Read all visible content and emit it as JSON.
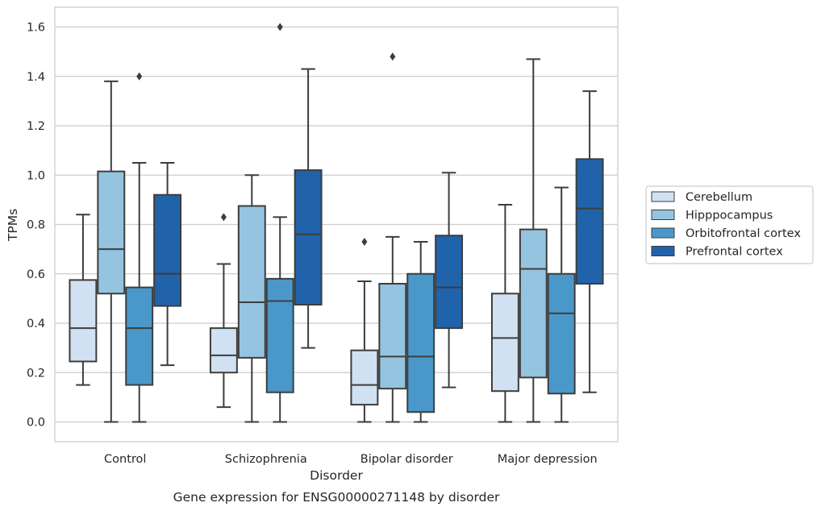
{
  "chart_data": {
    "type": "box",
    "title": "",
    "caption": "Gene expression for ENSG00000271148 by disorder",
    "xlabel": "Disorder",
    "ylabel": "TPMs",
    "ylim": [
      -0.08,
      1.68
    ],
    "yticks": [
      "0.0",
      "0.2",
      "0.4",
      "0.6",
      "0.8",
      "1.0",
      "1.2",
      "1.4",
      "1.6"
    ],
    "grid": "horizontal",
    "legend_position": "right",
    "categories": [
      "Control",
      "Schizophrenia",
      "Bipolar disorder",
      "Major depression"
    ],
    "series": [
      {
        "name": "Cerebellum",
        "color": "#d0e1f2",
        "boxes": [
          {
            "whislo": 0.15,
            "q1": 0.245,
            "med": 0.38,
            "q3": 0.575,
            "whishi": 0.84,
            "fliers": []
          },
          {
            "whislo": 0.06,
            "q1": 0.2,
            "med": 0.27,
            "q3": 0.38,
            "whishi": 0.64,
            "fliers": [
              0.83
            ]
          },
          {
            "whislo": 0.0,
            "q1": 0.07,
            "med": 0.15,
            "q3": 0.29,
            "whishi": 0.57,
            "fliers": [
              0.73
            ]
          },
          {
            "whislo": 0.0,
            "q1": 0.125,
            "med": 0.34,
            "q3": 0.52,
            "whishi": 0.88,
            "fliers": []
          }
        ]
      },
      {
        "name": "Hipppocampus",
        "color": "#94c4df",
        "boxes": [
          {
            "whislo": 0.0,
            "q1": 0.52,
            "med": 0.7,
            "q3": 1.015,
            "whishi": 1.38,
            "fliers": []
          },
          {
            "whislo": 0.0,
            "q1": 0.26,
            "med": 0.485,
            "q3": 0.875,
            "whishi": 1.0,
            "fliers": []
          },
          {
            "whislo": 0.0,
            "q1": 0.135,
            "med": 0.265,
            "q3": 0.56,
            "whishi": 0.75,
            "fliers": [
              1.48
            ]
          },
          {
            "whislo": 0.0,
            "q1": 0.18,
            "med": 0.62,
            "q3": 0.78,
            "whishi": 1.47,
            "fliers": []
          }
        ]
      },
      {
        "name": "Orbitofrontal cortex",
        "color": "#4a98c9",
        "boxes": [
          {
            "whislo": 0.0,
            "q1": 0.15,
            "med": 0.38,
            "q3": 0.545,
            "whishi": 1.05,
            "fliers": [
              1.4
            ]
          },
          {
            "whislo": 0.0,
            "q1": 0.12,
            "med": 0.49,
            "q3": 0.58,
            "whishi": 0.83,
            "fliers": [
              1.6
            ]
          },
          {
            "whislo": 0.0,
            "q1": 0.04,
            "med": 0.265,
            "q3": 0.6,
            "whishi": 0.73,
            "fliers": []
          },
          {
            "whislo": 0.0,
            "q1": 0.115,
            "med": 0.44,
            "q3": 0.6,
            "whishi": 0.95,
            "fliers": []
          }
        ]
      },
      {
        "name": "Prefrontal cortex",
        "color": "#2163aa",
        "boxes": [
          {
            "whislo": 0.23,
            "q1": 0.47,
            "med": 0.6,
            "q3": 0.92,
            "whishi": 1.05,
            "fliers": []
          },
          {
            "whislo": 0.3,
            "q1": 0.475,
            "med": 0.76,
            "q3": 1.02,
            "whishi": 1.43,
            "fliers": []
          },
          {
            "whislo": 0.14,
            "q1": 0.38,
            "med": 0.545,
            "q3": 0.755,
            "whishi": 1.01,
            "fliers": []
          },
          {
            "whislo": 0.12,
            "q1": 0.56,
            "med": 0.865,
            "q3": 1.065,
            "whishi": 1.34,
            "fliers": []
          }
        ]
      }
    ]
  }
}
